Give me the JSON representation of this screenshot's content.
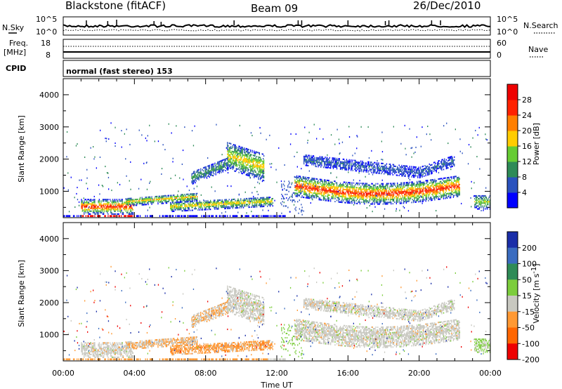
{
  "header": {
    "station": "Blackstone (fitACF)",
    "beam": "Beam 09",
    "date": "26/Dec/2010"
  },
  "chart_data": [
    {
      "type": "line",
      "panel": "noise",
      "left_label": "N.Sky",
      "right_label": "N.Search",
      "left_ticks": [
        "10^5",
        "10^0"
      ],
      "right_ticks": [
        "10^5",
        "10^0"
      ],
      "scale": "log",
      "series": [
        {
          "legend": "N.Sky",
          "style": "solid"
        },
        {
          "legend": "N.Search",
          "style": "dotted"
        }
      ]
    },
    {
      "type": "line",
      "panel": "frequency",
      "left_label": "Freq.",
      "left_unit": "[MHz]",
      "right_label": "Nave",
      "left_ticks": [
        "18",
        "8"
      ],
      "right_ticks": [
        "60",
        "0"
      ],
      "series": [
        {
          "legend": "Freq.",
          "style": "solid"
        },
        {
          "legend": "Nave",
          "style": "dotted"
        }
      ]
    },
    {
      "type": "table",
      "panel": "cpid",
      "label": "CPID",
      "text": "normal (fast stereo) 153"
    },
    {
      "type": "heatmap",
      "panel": "power",
      "ylabel": "Slant Range [km]",
      "yticks": [
        "1000",
        "2000",
        "3000",
        "4000"
      ],
      "ylim": [
        180,
        4500
      ],
      "colorbar": {
        "label": "Power [dB]",
        "ticks": [
          "4",
          "8",
          "12",
          "16",
          "20",
          "24",
          "28"
        ],
        "colors": [
          "#0000ff",
          "#2a52be",
          "#2e8b57",
          "#66cc33",
          "#ffcc00",
          "#ff7f00",
          "#ff2200",
          "#ee0000"
        ]
      }
    },
    {
      "type": "heatmap",
      "panel": "velocity",
      "ylabel": "Slant Range [km]",
      "yticks": [
        "1000",
        "2000",
        "3000",
        "4000"
      ],
      "ylim": [
        180,
        4500
      ],
      "xlabel": "Time UT",
      "xticks": [
        "00:00",
        "04:00",
        "08:00",
        "12:00",
        "16:00",
        "20:00",
        "00:00"
      ],
      "xlim_hours": [
        0,
        24
      ],
      "colorbar": {
        "label": "Velocity [m s",
        "label_sup": "-1",
        "label_end": "]",
        "ticks": [
          "200",
          "100",
          "50",
          "15",
          "-15",
          "-50",
          "-100",
          "-200"
        ],
        "colors": [
          "#1a2ea8",
          "#3a6cc0",
          "#2e8b57",
          "#7ccd3c",
          "#c8c8c0",
          "#ff9933",
          "#ff6600",
          "#ee0000"
        ]
      }
    }
  ]
}
